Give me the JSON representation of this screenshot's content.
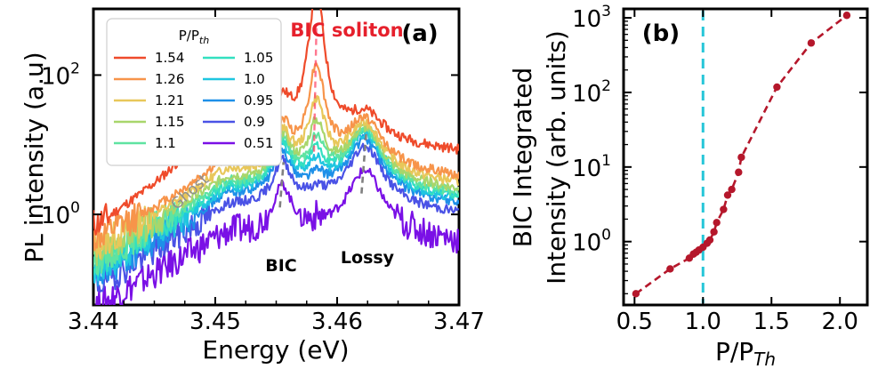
{
  "chart_data": [
    {
      "id": "a",
      "type": "line",
      "panel_label": "(a)",
      "xlabel": "Energy (eV)",
      "ylabel": "PL intensity (a.u)",
      "xlim": [
        3.44,
        3.47
      ],
      "ylim_log10": [
        -1.3,
        2.95
      ],
      "yscale": "log",
      "x_ticks": [
        3.44,
        3.45,
        3.46,
        3.47
      ],
      "x_tick_labels": [
        "3.44",
        "3.45",
        "3.46",
        "3.47"
      ],
      "y_ticks_log10": [
        0,
        2
      ],
      "y_tick_labels": [
        "10",
        "10"
      ],
      "y_tick_exponents": [
        "0",
        "2"
      ],
      "legend_title": "P/P",
      "legend_title_sub": "th",
      "annotations": {
        "bic_soliton": "BIC soliton",
        "ghost": "Ghost",
        "bic": "BIC",
        "lossy": "Lossy"
      },
      "mode_energies": {
        "bic": 3.4555,
        "soliton": 3.4583,
        "lossy": 3.4623,
        "ghost": 3.4505
      },
      "series": [
        {
          "name": "1.54",
          "color": "#ef4b2b",
          "base": 1.02,
          "ghost": 0.62,
          "bic": 0.45,
          "soliton": 2.05,
          "lossy": 0.38,
          "low_start": -0.15,
          "seed": 11
        },
        {
          "name": "1.26",
          "color": "#f7944a",
          "base": 0.65,
          "ghost": 0.12,
          "bic": 0.55,
          "soliton": 1.35,
          "lossy": 0.68,
          "low_start": -0.35,
          "seed": 12
        },
        {
          "name": "1.21",
          "color": "#e8c75a",
          "base": 0.55,
          "ghost": 0.08,
          "bic": 0.55,
          "soliton": 0.95,
          "lossy": 0.72,
          "low_start": -0.45,
          "seed": 13
        },
        {
          "name": "1.15",
          "color": "#a8d66b",
          "base": 0.46,
          "ghost": 0.05,
          "bic": 0.6,
          "soliton": 0.72,
          "lossy": 0.75,
          "low_start": -0.55,
          "seed": 14
        },
        {
          "name": "1.1",
          "color": "#5fe3a1",
          "base": 0.4,
          "ghost": 0.04,
          "bic": 0.62,
          "soliton": 0.55,
          "lossy": 0.8,
          "low_start": -0.65,
          "seed": 15
        },
        {
          "name": "1.05",
          "color": "#33e0c0",
          "base": 0.36,
          "ghost": 0.03,
          "bic": 0.62,
          "soliton": 0.42,
          "lossy": 0.82,
          "low_start": -0.7,
          "seed": 16
        },
        {
          "name": "1.0",
          "color": "#1fc6e0",
          "base": 0.32,
          "ghost": 0.02,
          "bic": 0.62,
          "soliton": 0.32,
          "lossy": 0.82,
          "low_start": -0.8,
          "seed": 17
        },
        {
          "name": "0.95",
          "color": "#1e90e8",
          "base": 0.26,
          "ghost": 0.02,
          "bic": 0.6,
          "soliton": 0.2,
          "lossy": 0.8,
          "low_start": -0.9,
          "seed": 18
        },
        {
          "name": "0.9",
          "color": "#4a52e6",
          "base": 0.12,
          "ghost": 0.0,
          "bic": 0.6,
          "soliton": 0.12,
          "lossy": 0.85,
          "low_start": -1.0,
          "seed": 19
        },
        {
          "name": "0.51",
          "color": "#7a10e6",
          "base": -0.28,
          "ghost": 0.0,
          "bic": 0.65,
          "soliton": 0.05,
          "lossy": 0.9,
          "low_start": -1.3,
          "seed": 20
        }
      ]
    },
    {
      "id": "b",
      "type": "scatter",
      "panel_label": "(b)",
      "xlabel": "P/P",
      "xlabel_sub": "Th",
      "ylabel_line1": "BIC Integrated",
      "ylabel_line2": "Intensity (arb. units)",
      "xlim": [
        0.42,
        2.2
      ],
      "ylim_log10": [
        -0.85,
        3.12
      ],
      "yscale": "log",
      "x_ticks": [
        0.5,
        1.0,
        1.5,
        2.0
      ],
      "x_tick_labels": [
        "0.5",
        "1.0",
        "1.5",
        "2.0"
      ],
      "y_ticks_log10": [
        0,
        1,
        2,
        3
      ],
      "y_tick_labels": [
        "10",
        "10",
        "10",
        "10"
      ],
      "y_tick_exponents": [
        "0",
        "1",
        "2",
        "3"
      ],
      "threshold_x": 1.0,
      "line_color": "#b5172b",
      "threshold_color": "#26c6d8",
      "x": [
        0.51,
        0.76,
        0.9,
        0.93,
        0.95,
        0.97,
        1.0,
        1.03,
        1.05,
        1.08,
        1.1,
        1.15,
        1.18,
        1.21,
        1.26,
        1.28,
        1.54,
        1.79,
        2.05
      ],
      "y": [
        0.2,
        0.43,
        0.6,
        0.68,
        0.72,
        0.77,
        0.84,
        0.95,
        1.05,
        1.35,
        1.8,
        2.7,
        4.2,
        5.0,
        8.5,
        13.5,
        118,
        460,
        1080
      ]
    }
  ]
}
